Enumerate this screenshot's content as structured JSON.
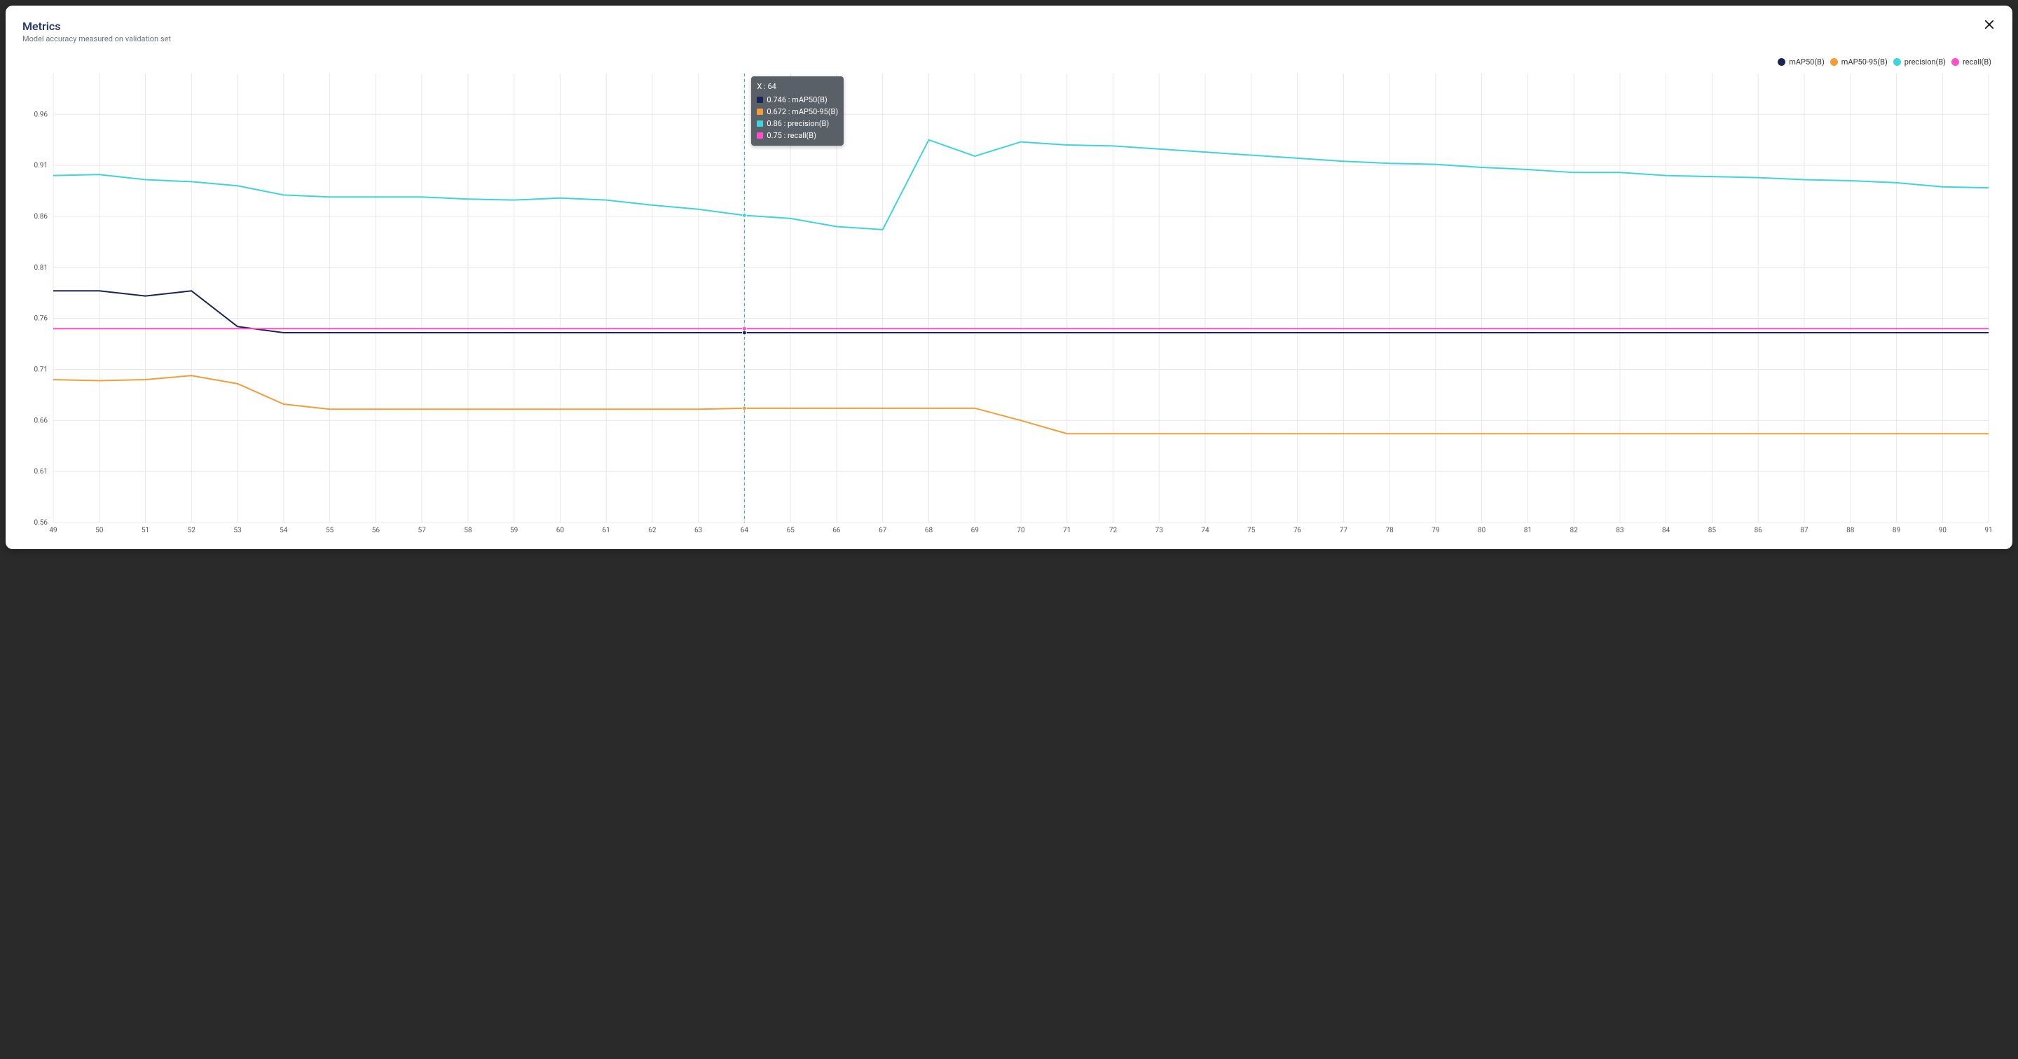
{
  "panel": {
    "title": "Metrics",
    "subtitle": "Model accuracy measured on validation set"
  },
  "chart": {
    "type": "line",
    "background_color": "#ffffff",
    "grid_color": "#e8e8ea",
    "x": {
      "min": 49,
      "max": 91,
      "step": 1
    },
    "y": {
      "min": 0.56,
      "max": 1.0,
      "step": 0.05
    },
    "hover_x": 64,
    "hover_line_color": "#4aa9d0",
    "marker_radius": 3,
    "axis_fontsize": 10,
    "line_width": 2,
    "series": [
      {
        "name": "mAP50(B)",
        "color": "#1a2556",
        "data": [
          0.787,
          0.787,
          0.782,
          0.787,
          0.752,
          0.746,
          0.746,
          0.746,
          0.746,
          0.746,
          0.746,
          0.746,
          0.746,
          0.746,
          0.746,
          0.746,
          0.746,
          0.746,
          0.746,
          0.746,
          0.746,
          0.746,
          0.746,
          0.746,
          0.746,
          0.746,
          0.746,
          0.746,
          0.746,
          0.746,
          0.746,
          0.746,
          0.746,
          0.746,
          0.746,
          0.746,
          0.746,
          0.746,
          0.746,
          0.746,
          0.746,
          0.746,
          0.746
        ]
      },
      {
        "name": "mAP50-95(B)",
        "color": "#f19e38",
        "data": [
          0.7,
          0.699,
          0.7,
          0.704,
          0.696,
          0.676,
          0.671,
          0.671,
          0.671,
          0.671,
          0.671,
          0.671,
          0.671,
          0.671,
          0.671,
          0.672,
          0.672,
          0.672,
          0.672,
          0.672,
          0.672,
          0.66,
          0.647,
          0.647,
          0.647,
          0.647,
          0.647,
          0.647,
          0.647,
          0.647,
          0.647,
          0.647,
          0.647,
          0.647,
          0.647,
          0.647,
          0.647,
          0.647,
          0.647,
          0.647,
          0.647,
          0.647,
          0.647
        ]
      },
      {
        "name": "precision(B)",
        "color": "#3fd4db",
        "data": [
          0.9,
          0.901,
          0.896,
          0.894,
          0.89,
          0.881,
          0.879,
          0.879,
          0.879,
          0.877,
          0.876,
          0.878,
          0.876,
          0.871,
          0.867,
          0.861,
          0.858,
          0.85,
          0.847,
          0.935,
          0.919,
          0.933,
          0.93,
          0.929,
          0.926,
          0.923,
          0.92,
          0.917,
          0.914,
          0.912,
          0.911,
          0.908,
          0.906,
          0.903,
          0.903,
          0.9,
          0.899,
          0.898,
          0.896,
          0.895,
          0.893,
          0.889,
          0.888
        ]
      },
      {
        "name": "recall(B)",
        "color": "#ff4fc8",
        "data": [
          0.75,
          0.75,
          0.75,
          0.75,
          0.75,
          0.75,
          0.75,
          0.75,
          0.75,
          0.75,
          0.75,
          0.75,
          0.75,
          0.75,
          0.75,
          0.75,
          0.75,
          0.75,
          0.75,
          0.75,
          0.75,
          0.75,
          0.75,
          0.75,
          0.75,
          0.75,
          0.75,
          0.75,
          0.75,
          0.75,
          0.75,
          0.75,
          0.75,
          0.75,
          0.75,
          0.75,
          0.75,
          0.75,
          0.75,
          0.75,
          0.75,
          0.75,
          0.75
        ]
      }
    ]
  },
  "tooltip": {
    "header": "X : 64",
    "rows": [
      {
        "color": "#1a2556",
        "text": "0.746 : mAP50(B)"
      },
      {
        "color": "#f19e38",
        "text": "0.672 : mAP50-95(B)"
      },
      {
        "color": "#3fd4db",
        "text": "0.86 : precision(B)"
      },
      {
        "color": "#ff4fc8",
        "text": "0.75 : recall(B)"
      }
    ]
  }
}
